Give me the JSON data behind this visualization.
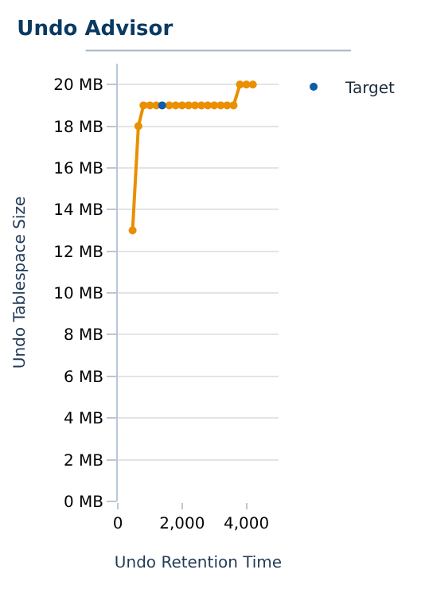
{
  "chart_data": {
    "type": "line",
    "title": "Undo Advisor",
    "xlabel": "Undo Retention Time",
    "ylabel": "Undo Tablespace Size",
    "series": [
      {
        "color": "#ea8f00",
        "x": [
          460,
          640,
          800,
          1000,
          1200,
          1600,
          1800,
          2000,
          2200,
          2400,
          2600,
          2800,
          3000,
          3200,
          3400,
          3600,
          3800,
          4000,
          4200
        ],
        "values": [
          13,
          18,
          19,
          19,
          19,
          19,
          19,
          19,
          19,
          19,
          19,
          19,
          19,
          19,
          19,
          19,
          20,
          20,
          20
        ]
      },
      {
        "type": "scatter",
        "name": "Target",
        "color": "#0b5ea8",
        "x": [
          1380
        ],
        "values": [
          19
        ]
      }
    ],
    "xlim": [
      0,
      5000
    ],
    "xticks": [
      0,
      {
        "value": 2000,
        "label": "2,000"
      },
      {
        "value": 4000,
        "label": "4,000"
      }
    ],
    "ylim": [
      0,
      21
    ],
    "yticks": [
      {
        "value": 0,
        "label": "0 MB"
      },
      {
        "value": 2,
        "label": "2 MB"
      },
      {
        "value": 4,
        "label": "4 MB"
      },
      {
        "value": 6,
        "label": "6 MB"
      },
      {
        "value": 8,
        "label": "8 MB"
      },
      {
        "value": 10,
        "label": "10 MB"
      },
      {
        "value": 12,
        "label": "12 MB"
      },
      {
        "value": 14,
        "label": "14 MB"
      },
      {
        "value": 16,
        "label": "16 MB"
      },
      {
        "value": 18,
        "label": "18 MB"
      },
      {
        "value": 20,
        "label": "20 MB"
      }
    ],
    "grid": "y",
    "legend": "top right",
    "marker": "circle"
  }
}
